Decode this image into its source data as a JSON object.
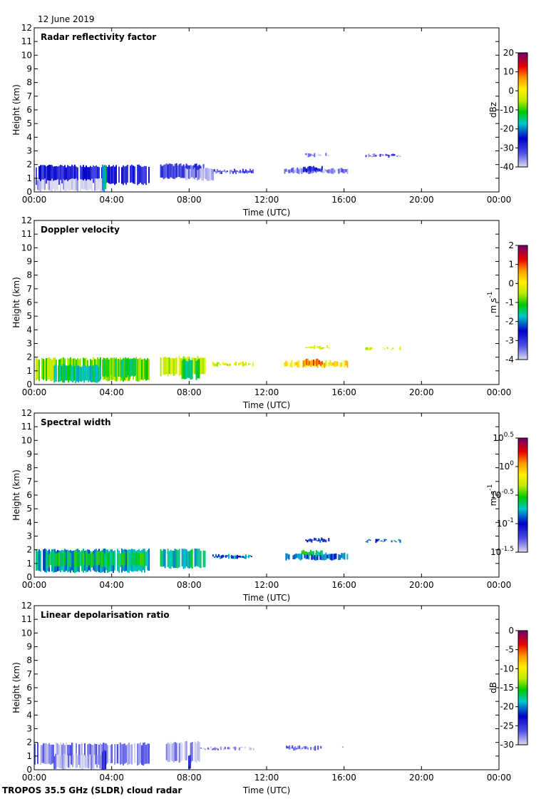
{
  "header": {
    "date": "12 June 2019"
  },
  "footer": {
    "instrument": "TROPOS 35.5 GHz (SLDR) cloud radar"
  },
  "chart_data": [
    {
      "type": "heatmap",
      "title": "Radar reflectivity factor",
      "xlabel": "Time (UTC)",
      "ylabel": "Height (km)",
      "x_ticks": [
        "00:00",
        "04:00",
        "08:00",
        "12:00",
        "16:00",
        "20:00",
        "00:00"
      ],
      "xlim_hours": [
        0,
        24
      ],
      "y_ticks": [
        "0",
        "1",
        "2",
        "3",
        "4",
        "5",
        "6",
        "7",
        "8",
        "9",
        "10",
        "11",
        "12"
      ],
      "ylim": [
        0,
        12
      ],
      "colorbar": {
        "label": "dBz",
        "range": [
          -40,
          20
        ],
        "ticks": [
          {
            "value": 20,
            "label": "20"
          },
          {
            "value": 10,
            "label": "10"
          },
          {
            "value": 0,
            "label": "0"
          },
          {
            "value": -10,
            "label": "-10"
          },
          {
            "value": -20,
            "label": "-20"
          },
          {
            "value": -30,
            "label": "-30"
          },
          {
            "value": -40,
            "label": "-40"
          }
        ]
      },
      "cells": [
        {
          "t0": 0.0,
          "t1": 5.9,
          "h0": 0.5,
          "h1": 2.0,
          "level": 0.2
        },
        {
          "t0": 0.0,
          "t1": 3.5,
          "h0": 0.0,
          "h1": 1.0,
          "level": 0.0
        },
        {
          "t0": 3.5,
          "t1": 3.65,
          "h0": 0.0,
          "h1": 2.0,
          "level": 0.4
        },
        {
          "t0": 6.5,
          "t1": 8.8,
          "h0": 0.9,
          "h1": 2.1,
          "level": 0.15
        },
        {
          "t0": 7.8,
          "t1": 9.2,
          "h0": 0.8,
          "h1": 1.8,
          "level": 0.05
        },
        {
          "t0": 9.2,
          "t1": 11.3,
          "h0": 1.3,
          "h1": 1.7,
          "level": 0.12
        },
        {
          "t0": 12.9,
          "t1": 16.2,
          "h0": 1.3,
          "h1": 1.8,
          "level": 0.08
        },
        {
          "t0": 13.8,
          "t1": 14.9,
          "h0": 1.4,
          "h1": 1.9,
          "level": 0.2
        },
        {
          "t0": 14.0,
          "t1": 15.2,
          "h0": 2.5,
          "h1": 2.9,
          "level": 0.05
        },
        {
          "t0": 17.1,
          "t1": 18.9,
          "h0": 2.5,
          "h1": 2.8,
          "level": 0.12
        }
      ]
    },
    {
      "type": "heatmap",
      "title": "Doppler velocity",
      "xlabel": "Time (UTC)",
      "ylabel": "Height (km)",
      "x_ticks": [
        "00:00",
        "04:00",
        "08:00",
        "12:00",
        "16:00",
        "20:00",
        "00:00"
      ],
      "xlim_hours": [
        0,
        24
      ],
      "y_ticks": [
        "0",
        "1",
        "2",
        "3",
        "4",
        "5",
        "6",
        "7",
        "8",
        "9",
        "10",
        "11",
        "12"
      ],
      "ylim": [
        0,
        12
      ],
      "colorbar": {
        "label": "m s-1",
        "range": [
          -4,
          2
        ],
        "ticks": [
          {
            "value": 2,
            "label": "2"
          },
          {
            "value": 1,
            "label": "1"
          },
          {
            "value": 0,
            "label": "0"
          },
          {
            "value": -1,
            "label": "-1"
          },
          {
            "value": -2,
            "label": "-2"
          },
          {
            "value": -3,
            "label": "-3"
          },
          {
            "value": -4,
            "label": "-4"
          }
        ]
      },
      "cells": [
        {
          "t0": 0.0,
          "t1": 5.9,
          "h0": 0.2,
          "h1": 2.0,
          "level": 0.55
        },
        {
          "t0": 1.0,
          "t1": 3.4,
          "h0": 0.1,
          "h1": 1.5,
          "level": 0.42
        },
        {
          "t0": 3.5,
          "t1": 5.2,
          "h0": 0.5,
          "h1": 2.0,
          "level": 0.47
        },
        {
          "t0": 6.5,
          "t1": 8.8,
          "h0": 0.6,
          "h1": 2.1,
          "level": 0.6
        },
        {
          "t0": 7.6,
          "t1": 8.5,
          "h0": 0.3,
          "h1": 1.9,
          "level": 0.45
        },
        {
          "t0": 9.2,
          "t1": 11.3,
          "h0": 1.3,
          "h1": 1.7,
          "level": 0.62
        },
        {
          "t0": 12.9,
          "t1": 16.2,
          "h0": 1.2,
          "h1": 1.8,
          "level": 0.7
        },
        {
          "t0": 13.8,
          "t1": 14.9,
          "h0": 1.3,
          "h1": 1.9,
          "level": 0.8
        },
        {
          "t0": 14.0,
          "t1": 15.2,
          "h0": 2.5,
          "h1": 2.9,
          "level": 0.62
        },
        {
          "t0": 17.1,
          "t1": 18.9,
          "h0": 2.5,
          "h1": 2.8,
          "level": 0.62
        }
      ]
    },
    {
      "type": "heatmap",
      "title": "Spectral width",
      "xlabel": "Time (UTC)",
      "ylabel": "Height (km)",
      "x_ticks": [
        "00:00",
        "04:00",
        "08:00",
        "12:00",
        "16:00",
        "20:00",
        "00:00"
      ],
      "xlim_hours": [
        0,
        24
      ],
      "y_ticks": [
        "0",
        "1",
        "2",
        "3",
        "4",
        "5",
        "6",
        "7",
        "8",
        "9",
        "10",
        "11",
        "12"
      ],
      "ylim": [
        0,
        12
      ],
      "colorbar": {
        "label": "m s-1",
        "scale": "log10",
        "range": [
          -1.5,
          0.5
        ],
        "ticks": [
          {
            "value": 0.5,
            "base": "10",
            "exp": "0.5"
          },
          {
            "value": 0,
            "base": "10",
            "exp": "0"
          },
          {
            "value": -0.5,
            "base": "10",
            "exp": "-0.5"
          },
          {
            "value": -1,
            "base": "10",
            "exp": "-1"
          },
          {
            "value": -1.5,
            "base": "10",
            "exp": "-1.5"
          }
        ]
      },
      "cells": [
        {
          "t0": 0.0,
          "t1": 5.9,
          "h0": 0.3,
          "h1": 2.1,
          "level": 0.35
        },
        {
          "t0": 0.6,
          "t1": 5.9,
          "h0": 0.7,
          "h1": 1.9,
          "level": 0.45
        },
        {
          "t0": 6.5,
          "t1": 8.8,
          "h0": 0.6,
          "h1": 2.1,
          "level": 0.4
        },
        {
          "t0": 9.2,
          "t1": 11.3,
          "h0": 1.3,
          "h1": 1.7,
          "level": 0.32
        },
        {
          "t0": 12.9,
          "t1": 16.2,
          "h0": 1.2,
          "h1": 1.8,
          "level": 0.3
        },
        {
          "t0": 13.8,
          "t1": 14.9,
          "h0": 1.5,
          "h1": 2.0,
          "level": 0.45
        },
        {
          "t0": 14.0,
          "t1": 15.2,
          "h0": 2.5,
          "h1": 2.9,
          "level": 0.25
        },
        {
          "t0": 17.1,
          "t1": 18.9,
          "h0": 2.5,
          "h1": 2.8,
          "level": 0.3
        }
      ]
    },
    {
      "type": "heatmap",
      "title": "Linear depolarisation ratio",
      "xlabel": "Time (UTC)",
      "ylabel": "Height (km)",
      "x_ticks": [
        "00:00",
        "04:00",
        "08:00",
        "12:00",
        "16:00",
        "20:00",
        "00:00"
      ],
      "xlim_hours": [
        0,
        24
      ],
      "y_ticks": [
        "0",
        "1",
        "2",
        "3",
        "4",
        "5",
        "6",
        "7",
        "8",
        "9",
        "10",
        "11",
        "12"
      ],
      "ylim": [
        0,
        12
      ],
      "colorbar": {
        "label": "dB",
        "range": [
          -30,
          0
        ],
        "ticks": [
          {
            "value": 0,
            "label": "0"
          },
          {
            "value": -5,
            "label": "-5"
          },
          {
            "value": -10,
            "label": "-10"
          },
          {
            "value": -15,
            "label": "-15"
          },
          {
            "value": -20,
            "label": "-20"
          },
          {
            "value": -25,
            "label": "-25"
          },
          {
            "value": -30,
            "label": "-30"
          }
        ]
      },
      "cells": [
        {
          "t0": 0.0,
          "t1": 5.9,
          "h0": 0.3,
          "h1": 2.0,
          "level": 0.06
        },
        {
          "t0": 1.0,
          "t1": 3.5,
          "h0": 0.0,
          "h1": 1.2,
          "level": 0.05
        },
        {
          "t0": 3.5,
          "t1": 3.65,
          "h0": 0.0,
          "h1": 1.5,
          "level": 0.18
        },
        {
          "t0": 6.8,
          "t1": 8.5,
          "h0": 0.5,
          "h1": 2.1,
          "level": 0.06
        },
        {
          "t0": 7.95,
          "t1": 8.05,
          "h0": 0.0,
          "h1": 1.2,
          "level": 0.18
        },
        {
          "t0": 8.5,
          "t1": 11.3,
          "h0": 1.4,
          "h1": 1.7,
          "level": 0.06
        },
        {
          "t0": 13.0,
          "t1": 14.8,
          "h0": 1.4,
          "h1": 1.8,
          "level": 0.08
        },
        {
          "t0": 15.9,
          "t1": 16.05,
          "h0": 1.5,
          "h1": 1.7,
          "level": 0.06
        }
      ]
    }
  ]
}
